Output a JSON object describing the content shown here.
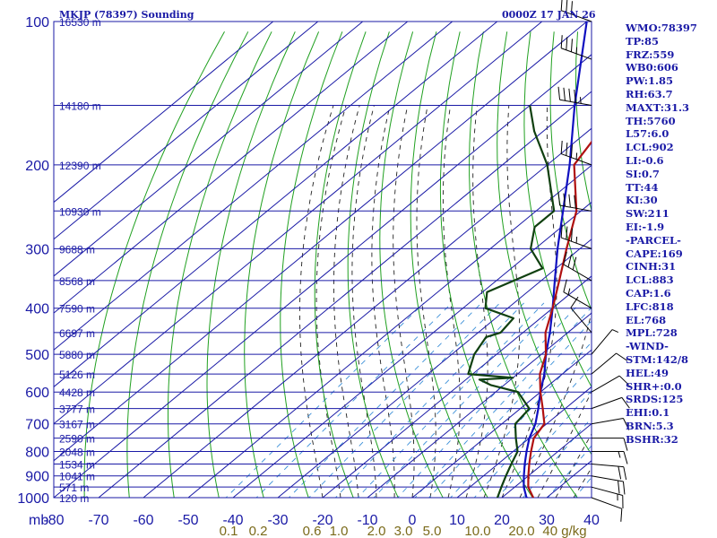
{
  "title": "MKJP (78397) Sounding",
  "time": "0000Z 17 JAN 26",
  "chart_data": {
    "type": "skew-t",
    "y_axis_unit": "mb",
    "pressure_levels": [
      100,
      200,
      300,
      400,
      500,
      600,
      700,
      800,
      900,
      1000
    ],
    "extra_isobars": [
      150,
      250,
      350,
      450,
      550,
      650,
      750,
      850,
      950
    ],
    "temperature_ticks": [
      -80,
      -70,
      -60,
      -50,
      -40,
      -30,
      -20,
      -10,
      0,
      10,
      20,
      30,
      40
    ],
    "temperature_tick_labels": [
      "-80",
      "-70",
      "-60",
      "-50",
      "-40",
      "-30",
      "-20",
      "-10",
      "0",
      "10",
      "20",
      "30",
      "40"
    ],
    "mixing_ratio_labels": [
      "0.1",
      "0.2",
      "0.6",
      "1.0",
      "2.0",
      "3.0",
      "5.0",
      "10.0",
      "20.0",
      "40 g/kg"
    ],
    "height_labels": [
      {
        "p": 100,
        "text": "16530 m"
      },
      {
        "p": 150,
        "text": "14180 m"
      },
      {
        "p": 200,
        "text": "12390 m"
      },
      {
        "p": 250,
        "text": "10930 m"
      },
      {
        "p": 300,
        "text": "9688 m"
      },
      {
        "p": 350,
        "text": "8568 m"
      },
      {
        "p": 400,
        "text": "7590 m"
      },
      {
        "p": 450,
        "text": "6697 m"
      },
      {
        "p": 500,
        "text": "5880 m"
      },
      {
        "p": 550,
        "text": "5126 m"
      },
      {
        "p": 600,
        "text": "4428 m"
      },
      {
        "p": 650,
        "text": "3777 m"
      },
      {
        "p": 700,
        "text": "3167 m"
      },
      {
        "p": 750,
        "text": "2590 m"
      },
      {
        "p": 800,
        "text": "2048 m"
      },
      {
        "p": 850,
        "text": "1534 m"
      },
      {
        "p": 900,
        "text": "1041 m"
      },
      {
        "p": 950,
        "text": "571 m"
      },
      {
        "p": 1000,
        "text": "120 m"
      }
    ],
    "temperature_profile": [
      [
        1012,
        28
      ],
      [
        1000,
        27
      ],
      [
        950,
        23
      ],
      [
        900,
        20
      ],
      [
        850,
        17
      ],
      [
        800,
        14
      ],
      [
        750,
        11
      ],
      [
        700,
        9.5
      ],
      [
        650,
        5
      ],
      [
        600,
        0
      ],
      [
        550,
        -5
      ],
      [
        500,
        -9
      ],
      [
        450,
        -15
      ],
      [
        400,
        -20
      ],
      [
        350,
        -26
      ],
      [
        300,
        -33
      ],
      [
        250,
        -41
      ],
      [
        200,
        -54
      ],
      [
        150,
        -60
      ],
      [
        120,
        -62
      ],
      [
        100,
        -66
      ]
    ],
    "dewpoint_profile": [
      [
        1012,
        20
      ],
      [
        1000,
        19
      ],
      [
        950,
        17
      ],
      [
        900,
        15
      ],
      [
        850,
        13
      ],
      [
        800,
        11
      ],
      [
        750,
        7
      ],
      [
        700,
        3
      ],
      [
        650,
        2
      ],
      [
        600,
        -5
      ],
      [
        580,
        -13
      ],
      [
        565,
        -17
      ],
      [
        560,
        -10
      ],
      [
        550,
        -21
      ],
      [
        500,
        -25
      ],
      [
        460,
        -27
      ],
      [
        450,
        -25
      ],
      [
        420,
        -26
      ],
      [
        400,
        -35
      ],
      [
        370,
        -39
      ],
      [
        330,
        -33
      ],
      [
        300,
        -41
      ],
      [
        270,
        -46
      ],
      [
        250,
        -46
      ],
      [
        200,
        -60
      ],
      [
        170,
        -72
      ],
      [
        150,
        -80
      ]
    ],
    "parcel_profile": [
      [
        1012,
        28
      ],
      [
        1000,
        25.5
      ],
      [
        950,
        22
      ],
      [
        900,
        19
      ],
      [
        850,
        16
      ],
      [
        800,
        13
      ],
      [
        750,
        10
      ],
      [
        700,
        7.5
      ],
      [
        650,
        4
      ],
      [
        600,
        0
      ],
      [
        550,
        -4
      ],
      [
        500,
        -9
      ],
      [
        450,
        -14
      ],
      [
        400,
        -20
      ],
      [
        350,
        -27
      ],
      [
        300,
        -35
      ],
      [
        250,
        -44
      ],
      [
        200,
        -55
      ],
      [
        150,
        -70
      ],
      [
        100,
        -90
      ]
    ],
    "wind_barbs": [
      {
        "p": 1000,
        "dir": 110,
        "spd": 10
      },
      {
        "p": 950,
        "dir": 105,
        "spd": 15
      },
      {
        "p": 900,
        "dir": 100,
        "spd": 20
      },
      {
        "p": 850,
        "dir": 95,
        "spd": 20
      },
      {
        "p": 800,
        "dir": 90,
        "spd": 15
      },
      {
        "p": 750,
        "dir": 90,
        "spd": 10
      },
      {
        "p": 700,
        "dir": 80,
        "spd": 10
      },
      {
        "p": 650,
        "dir": 70,
        "spd": 10
      },
      {
        "p": 600,
        "dir": 60,
        "spd": 10
      },
      {
        "p": 550,
        "dir": 50,
        "spd": 10
      },
      {
        "p": 500,
        "dir": 40,
        "spd": 5
      },
      {
        "p": 450,
        "dir": 320,
        "spd": 10
      },
      {
        "p": 400,
        "dir": 300,
        "spd": 15
      },
      {
        "p": 350,
        "dir": 300,
        "spd": 30
      },
      {
        "p": 300,
        "dir": 290,
        "spd": 35
      },
      {
        "p": 250,
        "dir": 280,
        "spd": 40
      },
      {
        "p": 200,
        "dir": 290,
        "spd": 35
      },
      {
        "p": 150,
        "dir": 280,
        "spd": 45
      },
      {
        "p": 120,
        "dir": 290,
        "spd": 35
      },
      {
        "p": 100,
        "dir": 290,
        "spd": 30
      }
    ],
    "colors": {
      "grid": "#1a1aa6",
      "isotherm": "#1a1aa6",
      "dry_adiabat": "#20a020",
      "moist_adiabat": "#202020",
      "mixing_ratio": "#3a8fd8",
      "temperature": "#b01010",
      "dewpoint": "#104010",
      "parcel": "#1010c0"
    }
  },
  "indices": [
    "WMO:78397",
    "TP:85",
    "FRZ:559",
    "WB0:606",
    "PW:1.85",
    "RH:63.7",
    "MAXT:31.3",
    "TH:5760",
    "L57:6.0",
    "LCL:902",
    "LI:-0.6",
    "SI:0.7",
    "TT:44",
    "KI:30",
    "SW:211",
    "EI:-1.9",
    "-PARCEL-",
    "CAPE:169",
    "CINH:31",
    "LCL:883",
    "CAP:1.6",
    "LFC:818",
    "EL:768",
    "MPL:728",
    "-WIND-",
    "STM:142/8",
    "HEL:49",
    "SHR+:0.0",
    "SRDS:125",
    "EHI:0.1",
    "BRN:5.3",
    "BSHR:32"
  ]
}
